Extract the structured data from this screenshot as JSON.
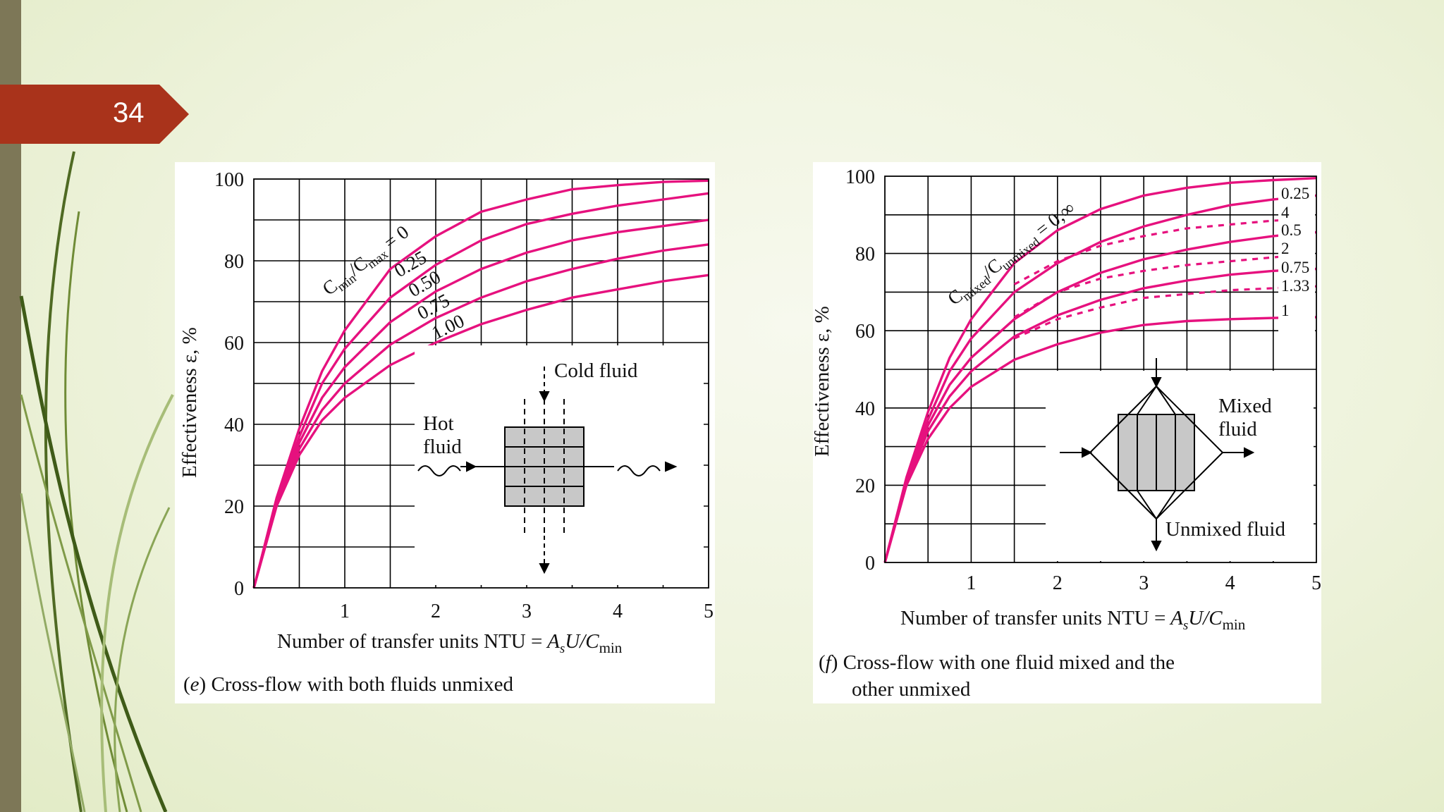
{
  "slide": {
    "number": "34"
  },
  "colors": {
    "curve": "#e6117e",
    "badge": "#a9331b",
    "sidebar": "#7d7757"
  },
  "chart_data": [
    {
      "type": "line",
      "caption_letter": "e",
      "caption": "Cross-flow with both fluids unmixed",
      "xlabel": "Number of transfer units NTU =",
      "xlabel_formula": "A_sU/C_min",
      "ylabel": "Effectiveness ε, %",
      "xlim": [
        0,
        5
      ],
      "ylim": [
        0,
        100
      ],
      "x_ticks": [
        "1",
        "2",
        "3",
        "4",
        "5"
      ],
      "y_ticks": [
        "0",
        "20",
        "40",
        "60",
        "80",
        "100"
      ],
      "grid": true,
      "ratio_label": "C_min/C_max = 0",
      "series": [
        {
          "name": "0",
          "x": [
            0,
            0.25,
            0.5,
            0.75,
            1,
            1.5,
            2,
            2.5,
            3,
            3.5,
            4,
            4.5,
            5
          ],
          "y": [
            0,
            22,
            39,
            53,
            63,
            78,
            86,
            92,
            95,
            97.5,
            98.5,
            99.3,
            99.6
          ]
        },
        {
          "name": "0.25",
          "x": [
            0,
            0.25,
            0.5,
            0.75,
            1,
            1.5,
            2,
            2.5,
            3,
            3.5,
            4,
            4.5,
            5
          ],
          "y": [
            0,
            21.5,
            37,
            50,
            58.5,
            71,
            79,
            85,
            89,
            91.5,
            93.5,
            95,
            96.5
          ]
        },
        {
          "name": "0.50",
          "x": [
            0,
            0.25,
            0.5,
            0.75,
            1,
            1.5,
            2,
            2.5,
            3,
            3.5,
            4,
            4.5,
            5
          ],
          "y": [
            0,
            21,
            35.5,
            46.5,
            54,
            65,
            72.5,
            78,
            82,
            85,
            87,
            88.5,
            90
          ]
        },
        {
          "name": "0.75",
          "x": [
            0,
            0.25,
            0.5,
            0.75,
            1,
            1.5,
            2,
            2.5,
            3,
            3.5,
            4,
            4.5,
            5
          ],
          "y": [
            0,
            20.5,
            34,
            43.5,
            50,
            59.5,
            66,
            71,
            75,
            78,
            80.5,
            82.5,
            84
          ]
        },
        {
          "name": "1.00",
          "x": [
            0,
            0.25,
            0.5,
            0.75,
            1,
            1.5,
            2,
            2.5,
            3,
            3.5,
            4,
            4.5,
            5
          ],
          "y": [
            0,
            20,
            32.5,
            41,
            46.5,
            54.5,
            60,
            64.5,
            68,
            71,
            73,
            75,
            76.5
          ]
        }
      ],
      "diagram": {
        "cold_label": "Cold fluid",
        "hot_label_line1": "Hot",
        "hot_label_line2": "fluid"
      }
    },
    {
      "type": "line",
      "caption_letter": "f",
      "caption_line1": "Cross-flow with one fluid mixed and the",
      "caption_line2": "other unmixed",
      "xlabel": "Number of transfer units NTU =",
      "xlabel_formula": "A_sU/C_min",
      "ylabel": "Effectiveness ε, %",
      "xlim": [
        0,
        5
      ],
      "ylim": [
        0,
        100
      ],
      "x_ticks": [
        "1",
        "2",
        "3",
        "4",
        "5"
      ],
      "y_ticks": [
        "0",
        "20",
        "40",
        "60",
        "80",
        "100"
      ],
      "grid": true,
      "ratio_label": "C_mixed/C_unmixed = 0,∞",
      "series": [
        {
          "name": "0,∞",
          "style": "solid",
          "x": [
            0,
            0.25,
            0.5,
            0.75,
            1,
            1.5,
            2,
            2.5,
            3,
            3.5,
            4,
            4.5,
            5
          ],
          "y": [
            0,
            22,
            39,
            53,
            63,
            77.5,
            86,
            91.5,
            95,
            97,
            98.3,
            99,
            99.5
          ]
        },
        {
          "name": "0.25",
          "style": "solid",
          "x": [
            0,
            0.25,
            0.5,
            0.75,
            1,
            1.5,
            2,
            2.5,
            3,
            3.5,
            4,
            4.5,
            5
          ],
          "y": [
            0,
            21.5,
            37,
            49.5,
            58,
            70,
            77.5,
            83,
            87,
            90,
            92.5,
            94,
            95
          ]
        },
        {
          "name": "4",
          "style": "dotted",
          "x": [
            1.5,
            2,
            2.5,
            3,
            3.5,
            4,
            4.5,
            5
          ],
          "y": [
            72,
            78,
            82,
            84.5,
            86.5,
            87.5,
            88.5,
            89
          ]
        },
        {
          "name": "0.5",
          "style": "solid",
          "x": [
            0,
            0.25,
            0.5,
            0.75,
            1,
            1.5,
            2,
            2.5,
            3,
            3.5,
            4,
            4.5,
            5
          ],
          "y": [
            0,
            21,
            35.5,
            46,
            53,
            63,
            70,
            75,
            78.5,
            81,
            83,
            84.5,
            85.5
          ]
        },
        {
          "name": "2",
          "style": "dotted",
          "x": [
            1.5,
            2,
            2.5,
            3,
            3.5,
            4,
            4.5,
            5
          ],
          "y": [
            63.5,
            70,
            73.5,
            75.5,
            77,
            78,
            79,
            80
          ]
        },
        {
          "name": "0.75",
          "style": "solid",
          "x": [
            0,
            0.25,
            0.5,
            0.75,
            1,
            1.5,
            2,
            2.5,
            3,
            3.5,
            4,
            4.5,
            5
          ],
          "y": [
            0,
            20.5,
            34,
            43,
            49.5,
            58.5,
            64,
            68,
            71,
            73,
            74.5,
            75.5,
            76
          ]
        },
        {
          "name": "1.33",
          "style": "dotted",
          "x": [
            1.5,
            2,
            2.5,
            3,
            3.5,
            4,
            4.5,
            5
          ],
          "y": [
            58,
            63,
            66,
            68.5,
            69.5,
            70.5,
            71,
            71.5
          ]
        },
        {
          "name": "1",
          "style": "solid",
          "x": [
            0,
            0.25,
            0.5,
            0.75,
            1,
            1.5,
            2,
            2.5,
            3,
            3.5,
            4,
            4.5,
            5
          ],
          "y": [
            0,
            20,
            32,
            40,
            45.5,
            52.5,
            56.5,
            59.5,
            61.5,
            62.5,
            63,
            63.3,
            63.5
          ]
        }
      ],
      "diagram": {
        "mixed_label_line1": "Mixed",
        "mixed_label_line2": "fluid",
        "unmixed_label": "Unmixed fluid"
      }
    }
  ]
}
